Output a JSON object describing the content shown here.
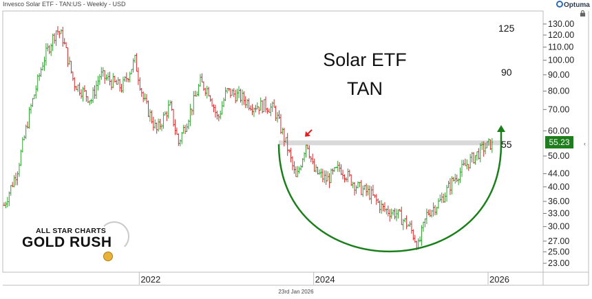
{
  "header": {
    "instrument": "Invesco Solar ETF - TAN:US - Weekly - USD"
  },
  "logo": {
    "text": "Optuma"
  },
  "footer": {
    "date": "23rd Jan 2026"
  },
  "annotations": {
    "title_line1": "Solar ETF",
    "title_line2": "TAN",
    "level_125": "125",
    "level_90": "90",
    "level_55": "55"
  },
  "branding": {
    "line1": "ALL STAR CHARTS",
    "line2": "GOLD RUSH"
  },
  "current_price": "55.23",
  "colors": {
    "up": "#2ca02c",
    "down": "#d62728",
    "arc": "#1a7f1a",
    "arrow_red": "#e02020",
    "price_tag": "#1e7e1e",
    "resistance_band": "#d9d9d9"
  },
  "chart_data": {
    "type": "candlestick",
    "scale": "log",
    "y_ticks": [
      "130.00",
      "120.00",
      "110.00",
      "100.00",
      "90.00",
      "80.00",
      "70.00",
      "60.00",
      "55.00",
      "50.00",
      "44.00",
      "40.00",
      "36.00",
      "33.00",
      "30.00",
      "27.00",
      "25.00",
      "23.00"
    ],
    "x_ticks": [
      {
        "label": "2022",
        "date": 2022.0
      },
      {
        "label": "2024",
        "date": 2024.0
      },
      {
        "label": "2026",
        "date": 2026.0
      }
    ],
    "xlim": [
      2020.45,
      2026.6
    ],
    "ylim": [
      22,
      140
    ],
    "resistance_level": 55,
    "last_close": 55.23,
    "price_path": [
      [
        2020.45,
        35
      ],
      [
        2020.6,
        45
      ],
      [
        2020.75,
        70
      ],
      [
        2020.9,
        100
      ],
      [
        2021.05,
        125
      ],
      [
        2021.12,
        118
      ],
      [
        2021.25,
        85
      ],
      [
        2021.45,
        75
      ],
      [
        2021.55,
        90
      ],
      [
        2021.7,
        85
      ],
      [
        2021.8,
        82
      ],
      [
        2021.95,
        100
      ],
      [
        2022.05,
        75
      ],
      [
        2022.2,
        60
      ],
      [
        2022.35,
        72
      ],
      [
        2022.45,
        55
      ],
      [
        2022.55,
        65
      ],
      [
        2022.7,
        85
      ],
      [
        2022.8,
        80
      ],
      [
        2022.9,
        65
      ],
      [
        2023.0,
        80
      ],
      [
        2023.15,
        77
      ],
      [
        2023.3,
        72
      ],
      [
        2023.45,
        72
      ],
      [
        2023.55,
        70
      ],
      [
        2023.7,
        53
      ],
      [
        2023.8,
        42
      ],
      [
        2023.92,
        56
      ],
      [
        2024.0,
        45
      ],
      [
        2024.15,
        42
      ],
      [
        2024.3,
        46
      ],
      [
        2024.5,
        40
      ],
      [
        2024.65,
        38
      ],
      [
        2024.8,
        34
      ],
      [
        2024.95,
        33
      ],
      [
        2025.1,
        30
      ],
      [
        2025.2,
        26
      ],
      [
        2025.3,
        33
      ],
      [
        2025.45,
        36
      ],
      [
        2025.6,
        42
      ],
      [
        2025.75,
        47
      ],
      [
        2025.85,
        50
      ],
      [
        2025.95,
        53
      ],
      [
        2026.06,
        55.23
      ]
    ]
  }
}
